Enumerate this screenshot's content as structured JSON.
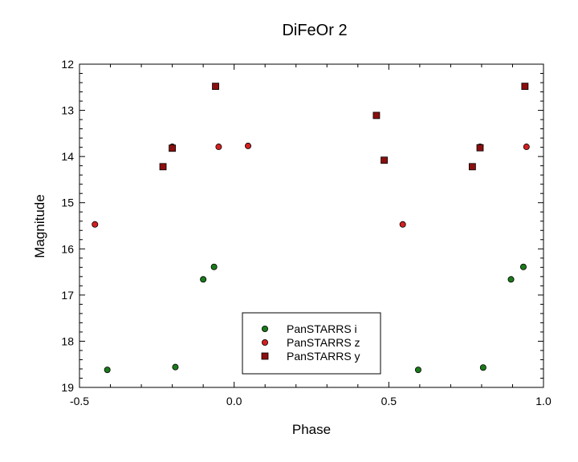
{
  "chart_data": {
    "type": "scatter",
    "title": "DiFeOr 2",
    "xlabel": "Phase",
    "ylabel": "Magnitude",
    "xlim": [
      -0.5,
      1.0
    ],
    "ylim": [
      12,
      19
    ],
    "y_inverted": true,
    "x_ticks": [
      -0.5,
      0.0,
      0.5,
      1.0
    ],
    "x_tick_labels": [
      "-0.5",
      "0.0",
      "0.5",
      "1.0"
    ],
    "y_ticks": [
      12,
      13,
      14,
      15,
      16,
      17,
      18,
      19
    ],
    "y_tick_labels": [
      "12",
      "13",
      "14",
      "15",
      "16",
      "17",
      "18",
      "19"
    ],
    "grid": false,
    "legend_position": "bottom-center",
    "series": [
      {
        "name": "PanSTARRS i",
        "marker": "circle",
        "color": "#1a7a1a",
        "points": [
          {
            "x": -0.41,
            "y": 18.62
          },
          {
            "x": -0.19,
            "y": 18.56
          },
          {
            "x": -0.1,
            "y": 16.66
          },
          {
            "x": -0.065,
            "y": 16.39
          },
          {
            "x": 0.595,
            "y": 18.62
          },
          {
            "x": 0.805,
            "y": 18.57
          },
          {
            "x": 0.895,
            "y": 16.66
          },
          {
            "x": 0.935,
            "y": 16.39
          }
        ]
      },
      {
        "name": "PanSTARRS z",
        "marker": "circle",
        "color": "#d42020",
        "points": [
          {
            "x": -0.45,
            "y": 15.47
          },
          {
            "x": -0.2,
            "y": 13.79
          },
          {
            "x": -0.05,
            "y": 13.79
          },
          {
            "x": 0.045,
            "y": 13.77
          },
          {
            "x": 0.545,
            "y": 15.47
          },
          {
            "x": 0.795,
            "y": 13.79
          },
          {
            "x": 0.945,
            "y": 13.79
          }
        ]
      },
      {
        "name": "PanSTARRS y",
        "marker": "square",
        "color": "#8b0f0f",
        "points": [
          {
            "x": -0.23,
            "y": 14.22
          },
          {
            "x": -0.2,
            "y": 13.82
          },
          {
            "x": -0.06,
            "y": 12.48
          },
          {
            "x": 0.46,
            "y": 13.11
          },
          {
            "x": 0.485,
            "y": 14.08
          },
          {
            "x": 0.77,
            "y": 14.22
          },
          {
            "x": 0.795,
            "y": 13.81
          },
          {
            "x": 0.94,
            "y": 12.48
          }
        ]
      }
    ]
  }
}
